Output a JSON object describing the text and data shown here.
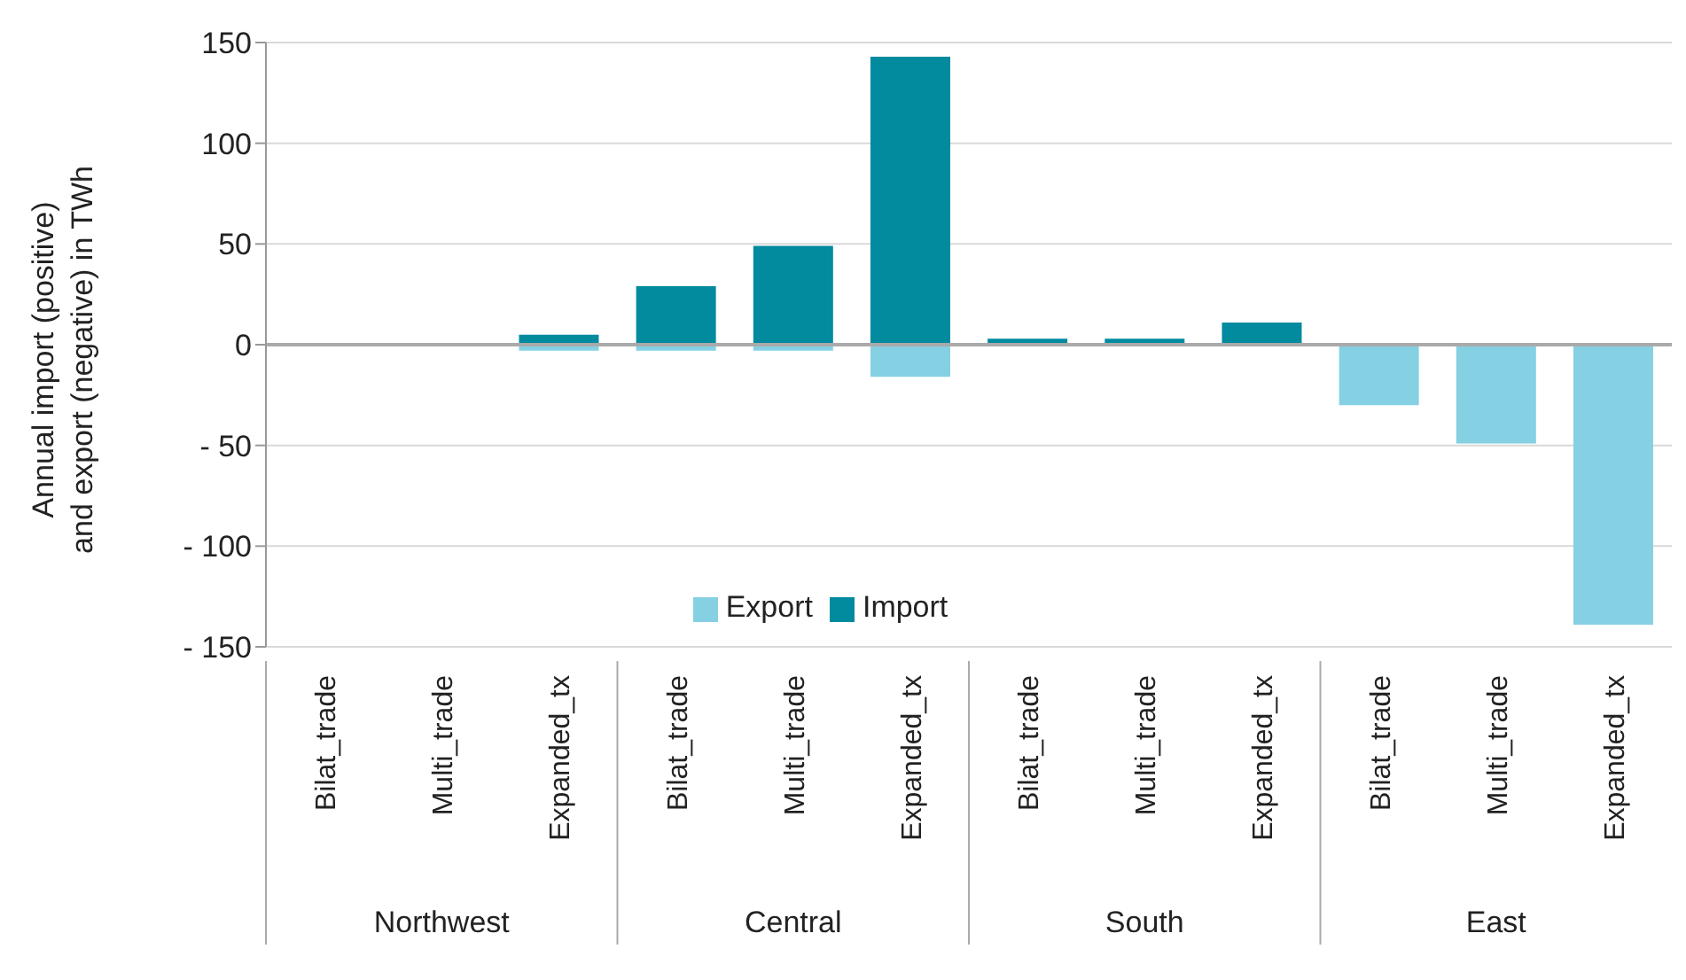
{
  "chart_data": {
    "type": "bar",
    "stacked": true,
    "ylabel": "Annual import (positive) and export (negative) in TWh",
    "categories": [
      "Bilat_trade",
      "Multi_trade",
      "Expanded_tx",
      "Bilat_trade",
      "Multi_trade",
      "Expanded_tx",
      "Bilat_trade",
      "Multi_trade",
      "Expanded_tx",
      "Bilat_trade",
      "Multi_trade",
      "Expanded_tx"
    ],
    "series": [
      {
        "name": "Export",
        "color": "#85d0e3",
        "values": [
          0,
          0,
          -3,
          -3,
          -3,
          -16,
          0,
          0,
          0,
          -30,
          -49,
          -139
        ]
      },
      {
        "name": "Import",
        "color": "#028a9f",
        "values": [
          0,
          0,
          5,
          29,
          49,
          143,
          3,
          3,
          11,
          0,
          0,
          0
        ]
      }
    ],
    "annotations": [
      "Northwest",
      "Central",
      "South",
      "East"
    ],
    "ylim": [
      -150,
      150
    ],
    "yticks": [
      {
        "value": -150,
        "label": "- 150"
      },
      {
        "value": -100,
        "label": "- 100"
      },
      {
        "value": -50,
        "label": "- 50"
      },
      0,
      50,
      100,
      150
    ],
    "grid": "y",
    "legend": "bottom"
  }
}
